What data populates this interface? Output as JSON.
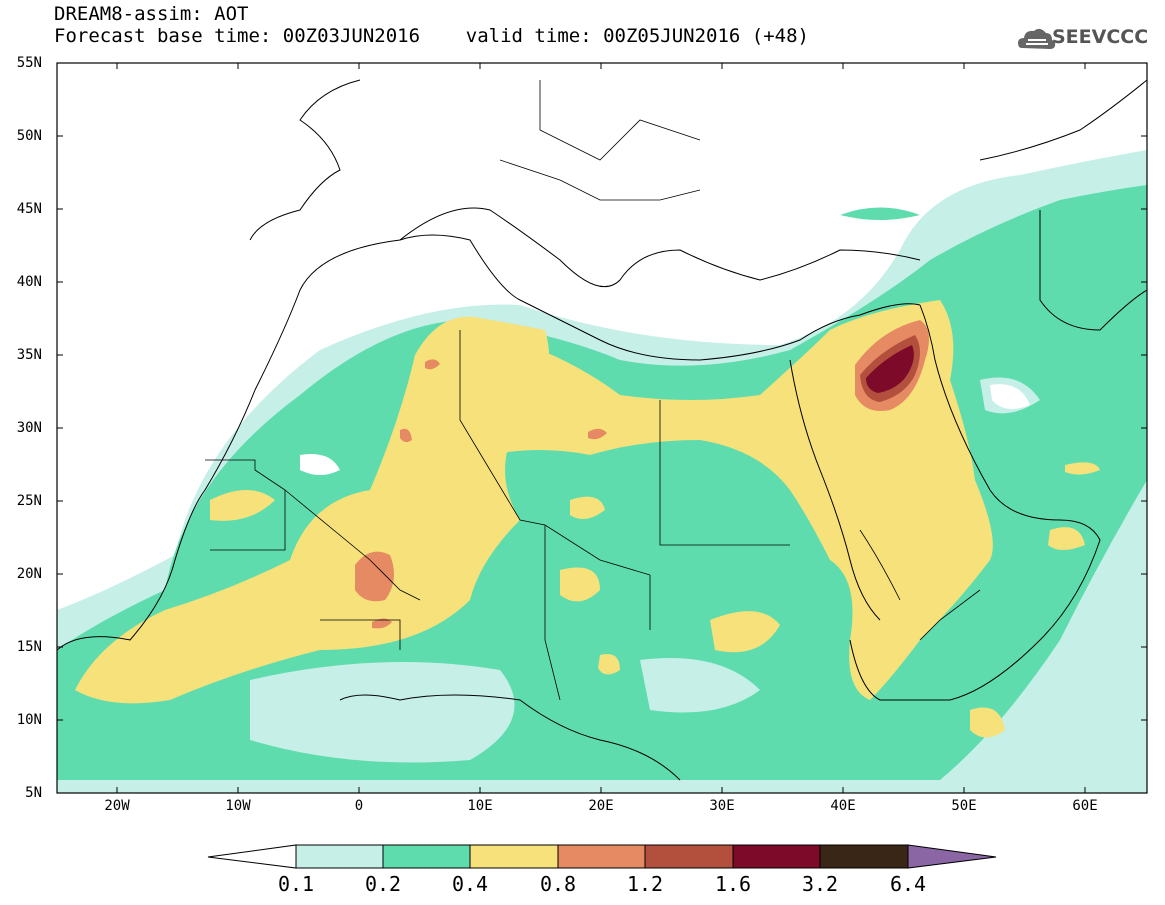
{
  "header": {
    "title_line1": "DREAM8-assim: AOT",
    "title_line2": "Forecast base time: 00Z03JUN2016    valid time: 00Z05JUN2016 (+48)",
    "logo_text": "SEEVCCC"
  },
  "map": {
    "lat_ticks": [
      "55N",
      "50N",
      "45N",
      "40N",
      "35N",
      "30N",
      "25N",
      "20N",
      "15N",
      "10N",
      "5N"
    ],
    "lon_ticks": [
      "20W",
      "10W",
      "0",
      "10E",
      "20E",
      "30E",
      "40E",
      "50E",
      "60E"
    ],
    "lon_range": [
      -25,
      65
    ],
    "lat_range": [
      5,
      55
    ]
  },
  "colorbar": {
    "labels": [
      "0.1",
      "0.2",
      "0.4",
      "0.8",
      "1.2",
      "1.6",
      "3.2",
      "6.4"
    ],
    "colors": [
      "#ffffff",
      "#c6efe8",
      "#5fdcae",
      "#f6e17a",
      "#e58a62",
      "#b3503d",
      "#7e0a2a",
      "#3a2616",
      "#8a67a4"
    ]
  },
  "colors": {
    "class_0_1": "#c6efe8",
    "class_0_2": "#5fdcae",
    "class_0_4": "#f6e17a",
    "class_0_8": "#e58a62",
    "class_1_2": "#b3503d",
    "class_1_6": "#7e0a2a"
  }
}
